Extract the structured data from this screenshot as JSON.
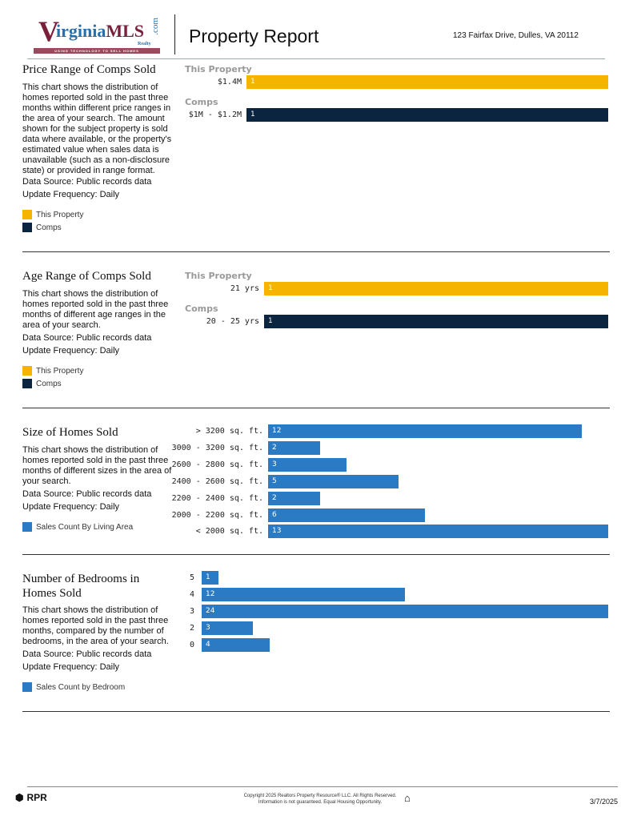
{
  "header": {
    "logo_text": "VirginiaMLS.com Realty",
    "logo_tagline": "USING TECHNOLOGY TO SELL HOMES",
    "title": "Property Report",
    "address": "123 Fairfax Drive, Dulles, VA 20112"
  },
  "sections": [
    {
      "title": "Price Range of Comps Sold",
      "description": "This chart shows the distribution of homes reported sold in the past three months within different price ranges in the area of your search. The amount shown for the subject property is sold data where available, or the property's estimated value when sales data is unavailable (such as a non-disclosure state) or provided in range format.",
      "source": "Data Source: Public records data",
      "frequency": "Update Frequency: Daily",
      "legend": [
        "This Property",
        "Comps"
      ]
    },
    {
      "title": "Age Range of Comps Sold",
      "description": "This chart shows the distribution of homes reported sold in the past three months of different age ranges in the area of your search.",
      "source": "Data Source: Public records data",
      "frequency": "Update Frequency: Daily",
      "legend": [
        "This Property",
        "Comps"
      ]
    },
    {
      "title": "Size of Homes Sold",
      "description": "This chart shows the distribution of homes reported sold in the past three months of different sizes in the area of your search.",
      "source": "Data Source: Public records data",
      "frequency": "Update Frequency: Daily",
      "legend": [
        "Sales Count By Living Area"
      ]
    },
    {
      "title": "Number of Bedrooms in Homes Sold",
      "description": "This chart shows the distribution of homes reported sold in the past three months, compared by the number of bedrooms, in the area of your search.",
      "source": "Data Source: Public records data",
      "frequency": "Update Frequency: Daily",
      "legend": [
        "Sales Count by Bedroom"
      ]
    }
  ],
  "colors": {
    "this_property": "#f5b400",
    "comps": "#0b2540",
    "blue": "#2a7ac4"
  },
  "chart_data": [
    {
      "type": "bar",
      "groups": [
        {
          "label": "This Property",
          "categories": [
            "$1.4M"
          ],
          "values": [
            1
          ]
        },
        {
          "label": "Comps",
          "categories": [
            "$1M - $1.2M"
          ],
          "values": [
            1
          ]
        }
      ]
    },
    {
      "type": "bar",
      "groups": [
        {
          "label": "This Property",
          "categories": [
            "21 yrs"
          ],
          "values": [
            1
          ]
        },
        {
          "label": "Comps",
          "categories": [
            "20 - 25 yrs"
          ],
          "values": [
            1
          ]
        }
      ]
    },
    {
      "type": "bar",
      "categories": [
        "> 3200 sq. ft.",
        "3000 - 3200 sq. ft.",
        "2600 - 2800 sq. ft.",
        "2400 - 2600 sq. ft.",
        "2200 - 2400 sq. ft.",
        "2000 - 2200 sq. ft.",
        "< 2000 sq. ft."
      ],
      "values": [
        12,
        2,
        3,
        5,
        2,
        6,
        13
      ],
      "series_name": "Sales Count By Living Area"
    },
    {
      "type": "bar",
      "categories": [
        "5",
        "4",
        "3",
        "2",
        "0"
      ],
      "values": [
        1,
        12,
        24,
        3,
        4
      ],
      "series_name": "Sales Count by Bedroom"
    }
  ],
  "footer": {
    "brand": "RPR",
    "copyright": "Copyright 2025 Realtors Property Resource® LLC. All Rights Reserved.",
    "disclaimer": "Information is not guaranteed. Equal Housing Opportunity.",
    "date": "3/7/2025"
  }
}
